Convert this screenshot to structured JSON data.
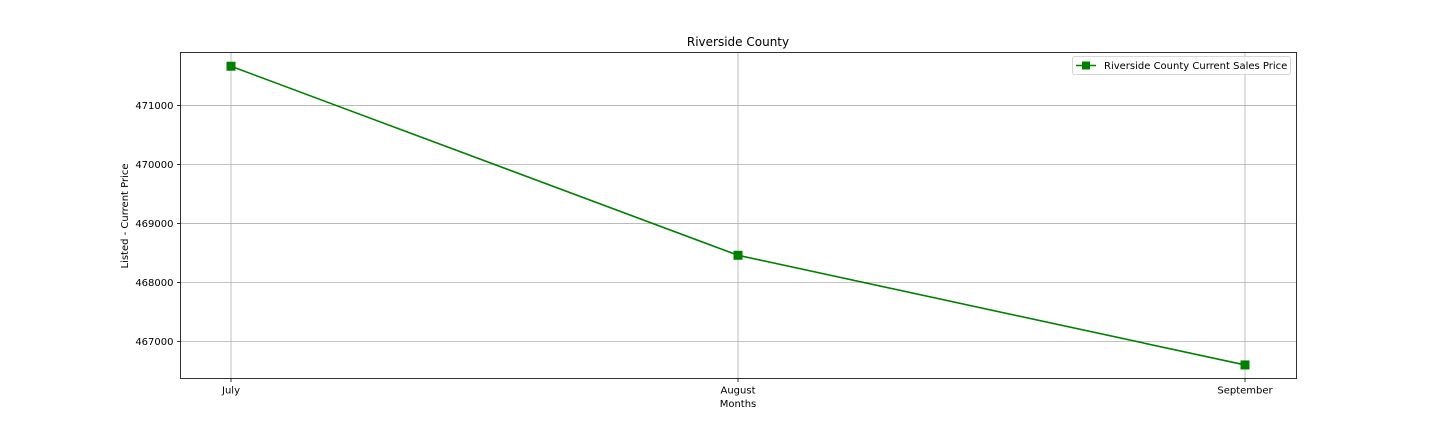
{
  "chart_data": {
    "type": "line",
    "title": "Riverside County",
    "xlabel": "Months",
    "ylabel": "Listed - Current Price",
    "categories": [
      "July",
      "August",
      "September"
    ],
    "series": [
      {
        "name": "Riverside County Current Sales Price",
        "values": [
          471667,
          468460,
          466600
        ],
        "color": "#008000",
        "marker": "square"
      }
    ],
    "yticks": [
      467000,
      468000,
      469000,
      470000,
      471000
    ],
    "ylim": [
      466370,
      471900
    ],
    "grid": true,
    "legend_position": "top-right"
  }
}
